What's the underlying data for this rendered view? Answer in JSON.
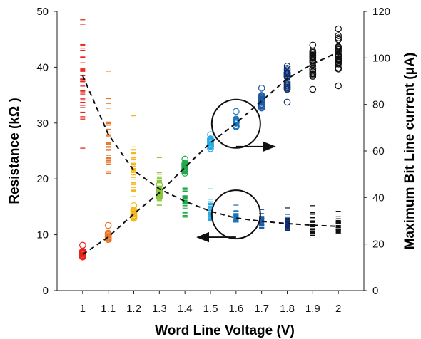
{
  "chart_data": {
    "type": "scatter",
    "xlabel": "Word Line Voltage (V)",
    "ylabel_left": "Resistance (kΩ )",
    "ylabel_right": "Maximum Bit Line current (μA)",
    "x_ticks": [
      "1",
      "1.1",
      "1.2",
      "1.3",
      "1.4",
      "1.5",
      "1.6",
      "1.7",
      "1.8",
      "1.9",
      "2"
    ],
    "y_left_ticks": [
      "0",
      "10",
      "20",
      "30",
      "40",
      "50"
    ],
    "y_right_ticks": [
      "0",
      "20",
      "40",
      "60",
      "80",
      "100",
      "120"
    ],
    "y_left_range": [
      0,
      50
    ],
    "y_right_range": [
      0,
      120
    ],
    "grid": false,
    "colors": [
      "#e8231b",
      "#e8762b",
      "#f4b81a",
      "#8dc63f",
      "#1ea84a",
      "#29abe2",
      "#1b75bc",
      "#1c5aa6",
      "#0d2e6e",
      "#111111",
      "#111111"
    ],
    "resistance": {
      "axis": "left",
      "marker": "dash",
      "x": [
        1.0,
        1.1,
        1.2,
        1.3,
        1.4,
        1.5,
        1.6,
        1.7,
        1.8,
        1.9,
        2.0
      ],
      "trend": [
        38.5,
        28.0,
        21.5,
        18.2,
        16.0,
        14.2,
        13.0,
        12.4,
        12.0,
        11.7,
        11.5
      ],
      "ranges": [
        [
          25.5,
          48.5
        ],
        [
          21.0,
          39.3
        ],
        [
          16.8,
          31.3
        ],
        [
          15.3,
          23.8
        ],
        [
          13.2,
          22.5
        ],
        [
          12.5,
          18.2
        ],
        [
          12.3,
          15.3
        ],
        [
          11.2,
          14.5
        ],
        [
          10.8,
          14.8
        ],
        [
          9.8,
          15.2
        ],
        [
          10.2,
          14.2
        ]
      ]
    },
    "current": {
      "axis": "right",
      "marker": "circle",
      "x": [
        1.0,
        1.1,
        1.2,
        1.3,
        1.4,
        1.5,
        1.6,
        1.7,
        1.8,
        1.9,
        2.0
      ],
      "trend": [
        15.5,
        23.0,
        33.0,
        42.0,
        53.0,
        63.5,
        72.0,
        81.5,
        91.0,
        97.5,
        102.5
      ],
      "ranges": [
        [
          14.5,
          19.5
        ],
        [
          22.0,
          28.0
        ],
        [
          31.0,
          36.5
        ],
        [
          40.0,
          45.5
        ],
        [
          50.5,
          56.5
        ],
        [
          61.0,
          67.0
        ],
        [
          70.5,
          77.0
        ],
        [
          78.5,
          87.0
        ],
        [
          81.0,
          96.5
        ],
        [
          86.5,
          105.5
        ],
        [
          88.0,
          112.5
        ]
      ]
    },
    "annotations": [
      {
        "type": "circle-arrow",
        "series": "current",
        "x": 1.6,
        "direction": "right"
      },
      {
        "type": "circle-arrow",
        "series": "resistance",
        "x": 1.6,
        "direction": "left"
      }
    ]
  }
}
